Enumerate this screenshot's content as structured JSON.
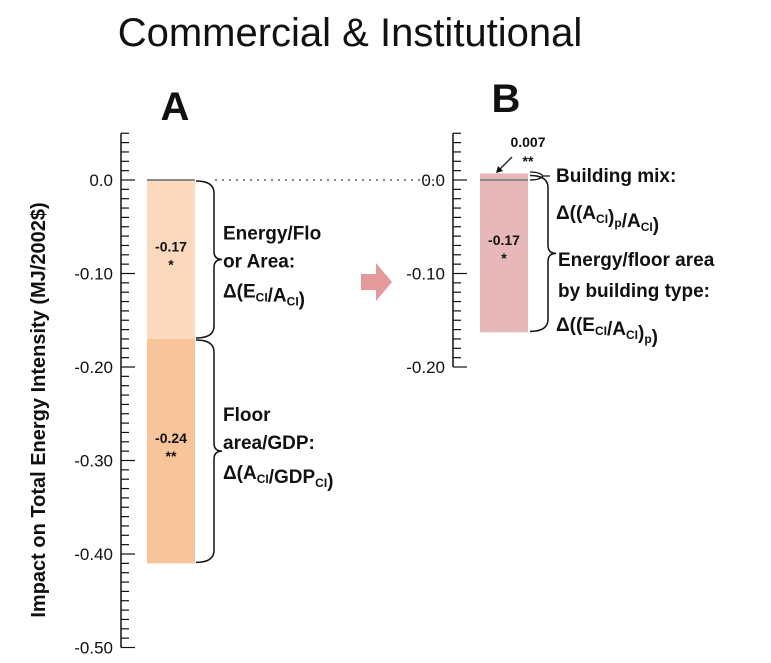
{
  "title": "Commercial & Institutional",
  "ylabel": "Impact on Total Energy Intensity (MJ/2002$)",
  "colors": {
    "floor_area_gdp": "#f8c49a",
    "energy_floor_area": "#fbd9bd",
    "building_mix": "#cd7b7d",
    "energy_by_type": "#e7b8b9",
    "arrow": "#e49a9b"
  },
  "chart_data": [
    {
      "type": "bar",
      "panel": "A",
      "ylim": [
        -0.5,
        0.05
      ],
      "ticks": [
        {
          "value": 0.0,
          "label": "0.0"
        },
        {
          "value": -0.1,
          "label": "-0.10"
        },
        {
          "value": -0.2,
          "label": "-0.20"
        },
        {
          "value": -0.3,
          "label": "-0.30"
        },
        {
          "value": -0.4,
          "label": "-0.40"
        },
        {
          "value": -0.5,
          "label": "-0.50"
        }
      ],
      "segments": [
        {
          "start": 0.0,
          "end": -0.17,
          "value": -0.17,
          "value_label": "-0.17",
          "significance": "*",
          "name_lines": [
            "Energy/Flo",
            "or Area:"
          ],
          "formula": {
            "pre": "Δ(E",
            "sub1": "CI",
            "mid": "/A",
            "sub2": "CI",
            "post": ")"
          }
        },
        {
          "start": -0.17,
          "end": -0.41,
          "value": -0.24,
          "value_label": "-0.24",
          "significance": "**",
          "name_lines": [
            "Floor",
            "area/GDP:"
          ],
          "formula": {
            "pre": "Δ(A",
            "sub1": "CI",
            "mid": "/GDP",
            "sub2": "CI",
            "post": ")"
          }
        }
      ]
    },
    {
      "type": "bar",
      "panel": "B",
      "ylim": [
        -0.2,
        0.05
      ],
      "ticks": [
        {
          "value": 0.0,
          "label": "0.0"
        },
        {
          "value": -0.1,
          "label": "-0.10"
        },
        {
          "value": -0.2,
          "label": "-0.20"
        }
      ],
      "segments": [
        {
          "start": 0.0,
          "end": 0.007,
          "value": 0.007,
          "value_label": "0.007",
          "significance": "**",
          "name_lines": [
            "Building mix:"
          ],
          "formula": {
            "pre": "Δ((A",
            "sub1": "CI",
            "mid": ")",
            "sub2": "p",
            "post": "/A",
            "sub3": "CI",
            "end": ")"
          }
        },
        {
          "start": 0.007,
          "end": -0.163,
          "value": -0.17,
          "value_label": "-0.17",
          "significance": "*",
          "name_lines": [
            "Energy/floor area",
            "by building type:"
          ],
          "formula": {
            "pre": "Δ((E",
            "sub1": "CI",
            "mid": "/A",
            "sub2": "CI",
            "post": ")",
            "sub3": "p",
            "end": ")"
          }
        }
      ]
    }
  ]
}
